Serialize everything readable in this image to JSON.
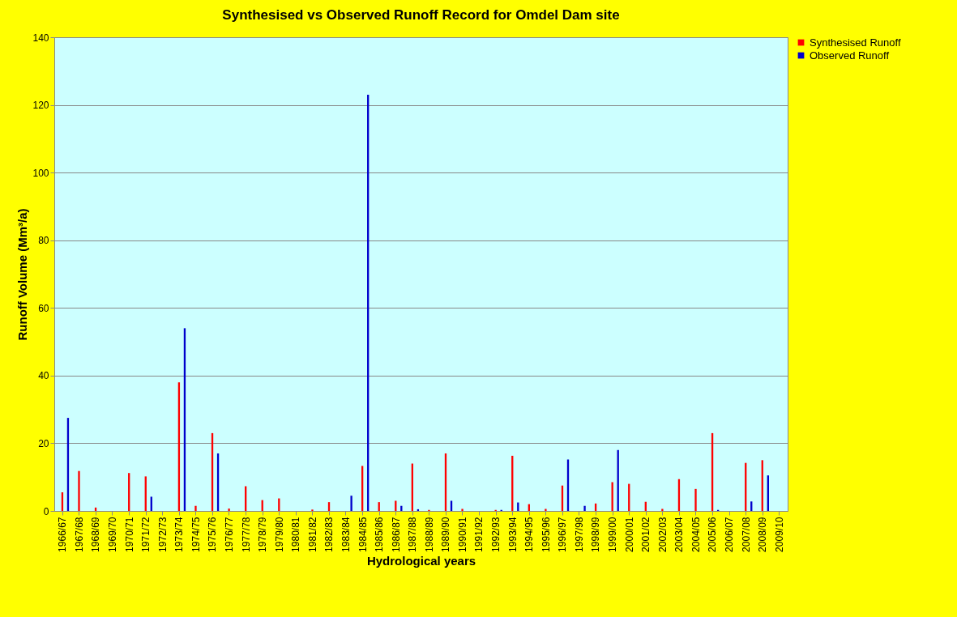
{
  "chart_data": {
    "type": "bar",
    "title": "Synthesised vs Observed Runoff Record for Omdel Dam site",
    "xlabel": "Hydrological years",
    "ylabel": "Runoff Volume (Mm³/a)",
    "categories": [
      "1966/67",
      "1967/68",
      "1968/69",
      "1969/70",
      "1970/71",
      "1971/72",
      "1972/73",
      "1973/74",
      "1974/75",
      "1975/76",
      "1976/77",
      "1977/78",
      "1978/79",
      "1979/80",
      "1980/81",
      "1981/82",
      "1982/83",
      "1983/84",
      "1984/85",
      "1985/86",
      "1986/87",
      "1987/88",
      "1988/89",
      "1989/90",
      "1990/91",
      "1991/92",
      "1992/93",
      "1993/94",
      "1994/95",
      "1995/96",
      "1996/97",
      "1997/98",
      "1998/99",
      "1999/00",
      "2000/01",
      "2001/02",
      "2002/03",
      "2003/04",
      "2004/05",
      "2005/06",
      "2006/07",
      "2007/08",
      "2008/09",
      "2009/10"
    ],
    "series": [
      {
        "name": "Synthesised Runoff",
        "color": "#ff0000",
        "values": [
          5.5,
          11.8,
          1,
          0,
          11.2,
          10.2,
          0,
          38,
          1.5,
          23,
          0.7,
          7.3,
          3.2,
          3.7,
          0,
          0.4,
          2.6,
          0,
          13.3,
          2.6,
          3,
          14,
          0.3,
          17,
          0.6,
          0,
          0.3,
          16.3,
          2,
          0.6,
          7.5,
          0,
          2.2,
          8.5,
          8,
          2.7,
          0.6,
          9.4,
          6.5,
          23,
          0,
          14.2,
          15,
          0
        ]
      },
      {
        "name": "Observed Runoff",
        "color": "#0000cc",
        "values": [
          27.5,
          0,
          0,
          0,
          0,
          4.2,
          0,
          54,
          0,
          17,
          0,
          0,
          0,
          0,
          0,
          0,
          0,
          4.5,
          123,
          0,
          1.5,
          0.5,
          0,
          3,
          0,
          0,
          0.3,
          2.5,
          0,
          0,
          15.2,
          1.5,
          0,
          18,
          0,
          0,
          0,
          0,
          0,
          0.3,
          0,
          2.8,
          10.5,
          0
        ]
      }
    ],
    "ylim": [
      0,
      140
    ],
    "yticks": [
      0,
      20,
      40,
      60,
      80,
      100,
      120,
      140
    ],
    "grid": "y",
    "legend": "right"
  }
}
